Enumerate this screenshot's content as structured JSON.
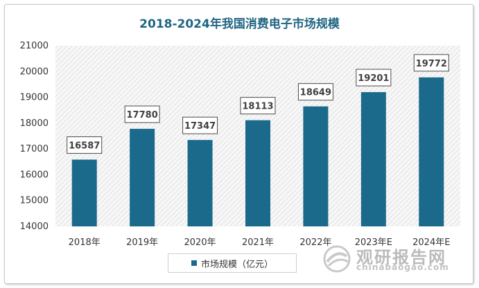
{
  "chart_data": {
    "type": "bar",
    "title": "2018-2024年我国消费电子市场规模",
    "categories": [
      "2018年",
      "2019年",
      "2020年",
      "2021年",
      "2022年",
      "2023年E",
      "2024年E"
    ],
    "series": [
      {
        "name": "市场规模（亿元）",
        "values": [
          16587,
          17780,
          17347,
          18113,
          18649,
          19201,
          19772
        ]
      }
    ],
    "ylim": [
      14000,
      21000
    ],
    "yticks": [
      14000,
      15000,
      16000,
      17000,
      18000,
      19000,
      20000,
      21000
    ],
    "grid": false,
    "data_labels": true,
    "legend": "bottom",
    "bar_color": "#1b6a8c",
    "plot_background": "hatched light gray"
  },
  "watermark": {
    "text_cn": "观研报告网",
    "text_en": "chinabaogao.com"
  }
}
